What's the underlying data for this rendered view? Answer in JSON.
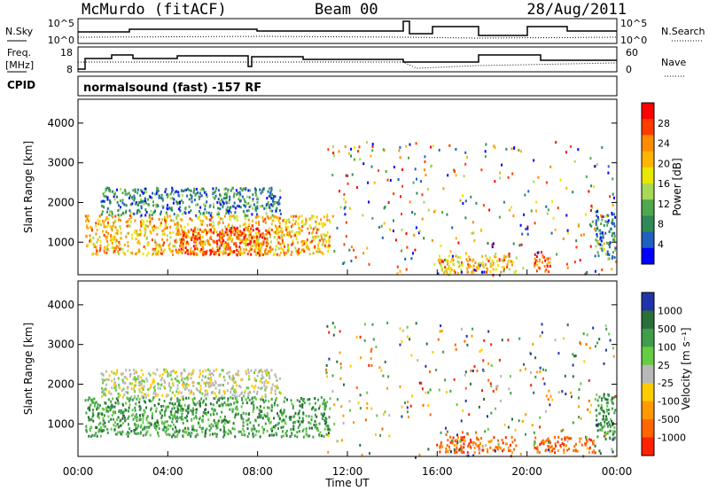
{
  "header": {
    "station": "McMurdo (fitACF)",
    "beam": "Beam 00",
    "date": "28/Aug/2011"
  },
  "noise_panel": {
    "left_label": "N.Sky",
    "right_label": "N.Search",
    "left_ticks": [
      "10^5",
      "10^0"
    ],
    "right_ticks": [
      "10^5",
      "10^0"
    ]
  },
  "freq_panel": {
    "left_label_1": "Freq.",
    "left_label_2": "[MHz]",
    "right_label": "Nave",
    "left_ticks": [
      "18",
      "8"
    ],
    "right_ticks": [
      "60",
      "0"
    ]
  },
  "cpid": {
    "label": "CPID",
    "value": "normalsound (fast) -157 RF"
  },
  "power_panel": {
    "ylabel": "Slant Range [km]",
    "yticks": [
      "4000",
      "3000",
      "2000",
      "1000"
    ],
    "colorbar_label": "Power [dB]",
    "colorbar_ticks": [
      "28",
      "24",
      "20",
      "16",
      "12",
      "8",
      "4"
    ],
    "colorbar_colors": [
      "#ff0000",
      "#ff3c00",
      "#ff8c00",
      "#ffb400",
      "#e8e800",
      "#a8d858",
      "#4fa84f",
      "#2e8b57",
      "#2060c0",
      "#0000ff"
    ]
  },
  "velocity_panel": {
    "ylabel": "Slant Range [km]",
    "yticks": [
      "4000",
      "3000",
      "2000",
      "1000"
    ],
    "colorbar_label": "Velocity [m s⁻¹]",
    "colorbar_ticks": [
      "1000",
      "500",
      "100",
      "25",
      "-25",
      "-100",
      "-500",
      "-1000"
    ],
    "colorbar_colors": [
      "#2233aa",
      "#2a6e3a",
      "#3f9e4a",
      "#66cc44",
      "#b8b8b8",
      "#ffcc00",
      "#ff9900",
      "#ff6600",
      "#ff2200"
    ]
  },
  "xaxis": {
    "label": "Time UT",
    "ticks": [
      "00:00",
      "04:00",
      "08:00",
      "12:00",
      "16:00",
      "20:00",
      "00:00"
    ]
  },
  "chart_data": [
    {
      "type": "heatmap",
      "title": "Power [dB]",
      "xlabel": "Time UT",
      "ylabel": "Slant Range [km]",
      "xlim": [
        0,
        24
      ],
      "ylim": [
        180,
        4600
      ],
      "clim": [
        0,
        30
      ],
      "regions": [
        {
          "t0": 0.3,
          "t1": 11.2,
          "r0": 700,
          "r1": 1700,
          "value": 22
        },
        {
          "t0": 4.5,
          "t1": 8.5,
          "r0": 700,
          "r1": 1400,
          "value": 27
        },
        {
          "t0": 1.0,
          "t1": 9.0,
          "r0": 1700,
          "r1": 2400,
          "value": 8
        },
        {
          "t0": 16.0,
          "t1": 19.5,
          "r0": 250,
          "r1": 700,
          "value": 22
        },
        {
          "t0": 20.3,
          "t1": 21.0,
          "r0": 250,
          "r1": 800,
          "value": 27
        },
        {
          "t0": 23.0,
          "t1": 23.9,
          "r0": 600,
          "r1": 1800,
          "value": 10
        }
      ]
    },
    {
      "type": "heatmap",
      "title": "Velocity [m s⁻¹]",
      "xlabel": "Time UT",
      "ylabel": "Slant Range [km]",
      "xlim": [
        0,
        24
      ],
      "ylim": [
        180,
        4600
      ],
      "clim": [
        -1000,
        1000
      ],
      "regions": [
        {
          "t0": 0.3,
          "t1": 11.2,
          "r0": 700,
          "r1": 1700,
          "value": 100
        },
        {
          "t0": 1.0,
          "t1": 9.0,
          "r0": 1700,
          "r1": 2400,
          "value": -25
        },
        {
          "t0": 16.0,
          "t1": 19.5,
          "r0": 300,
          "r1": 700,
          "value": -500
        },
        {
          "t0": 20.3,
          "t1": 23.0,
          "r0": 300,
          "r1": 700,
          "value": -500
        },
        {
          "t0": 23.0,
          "t1": 23.9,
          "r0": 600,
          "r1": 1800,
          "value": 100
        }
      ]
    }
  ]
}
